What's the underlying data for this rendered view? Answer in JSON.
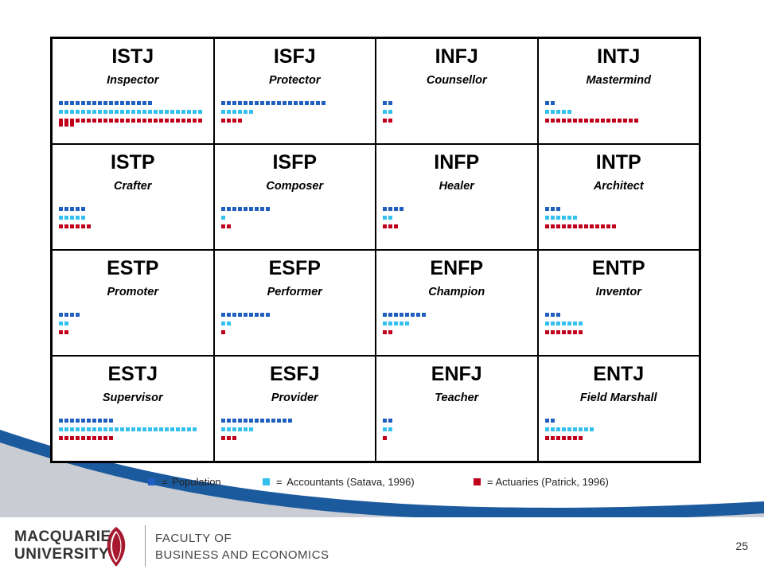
{
  "chart_data": {
    "type": "table",
    "legend": [
      {
        "key": "pop",
        "symbol": "=",
        "label": "Population",
        "color": "#1f5fbf"
      },
      {
        "key": "acc",
        "symbol": "=",
        "label": "Accountants  (Satava, 1996)",
        "color": "#33c0ee"
      },
      {
        "key": "act",
        "symbol": "",
        "label": "= Actuaries (Patrick, 1996)",
        "color": "#c0001a"
      }
    ],
    "cells": [
      {
        "code": "ISTJ",
        "role": "Inspector",
        "pop": 17,
        "acc": 26,
        "act": 29
      },
      {
        "code": "ISFJ",
        "role": "Protector",
        "pop": 19,
        "acc": 6,
        "act": 4
      },
      {
        "code": "INFJ",
        "role": "Counsellor",
        "pop": 2,
        "acc": 2,
        "act": 2
      },
      {
        "code": "INTJ",
        "role": "Mastermind",
        "pop": 2,
        "acc": 5,
        "act": 17
      },
      {
        "code": "ISTP",
        "role": "Crafter",
        "pop": 5,
        "acc": 5,
        "act": 6
      },
      {
        "code": "ISFP",
        "role": "Composer",
        "pop": 9,
        "acc": 1,
        "act": 2
      },
      {
        "code": "INFP",
        "role": "Healer",
        "pop": 4,
        "acc": 2,
        "act": 3
      },
      {
        "code": "INTP",
        "role": "Architect",
        "pop": 3,
        "acc": 6,
        "act": 13
      },
      {
        "code": "ESTP",
        "role": "Promoter",
        "pop": 4,
        "acc": 2,
        "act": 2
      },
      {
        "code": "ESFP",
        "role": "Performer",
        "pop": 9,
        "acc": 2,
        "act": 1
      },
      {
        "code": "ENFP",
        "role": "Champion",
        "pop": 8,
        "acc": 5,
        "act": 2
      },
      {
        "code": "ENTP",
        "role": "Inventor",
        "pop": 3,
        "acc": 7,
        "act": 7
      },
      {
        "code": "ESTJ",
        "role": "Supervisor",
        "pop": 10,
        "acc": 25,
        "act": 10
      },
      {
        "code": "ESFJ",
        "role": "Provider",
        "pop": 13,
        "acc": 6,
        "act": 3
      },
      {
        "code": "ENFJ",
        "role": "Teacher",
        "pop": 2,
        "acc": 2,
        "act": 1
      },
      {
        "code": "ENTJ",
        "role": "Field Marshall",
        "pop": 2,
        "acc": 9,
        "act": 7
      }
    ]
  },
  "footer": {
    "university_line1": "MACQUARIE",
    "university_line2": "UNIVERSITY",
    "faculty_line1": "FACULTY OF",
    "faculty_line2": "BUSINESS AND ECONOMICS",
    "page_number": "25"
  },
  "colors": {
    "swoosh_light": "#c9ccd3",
    "swoosh_dark": "#1c5a9e"
  }
}
